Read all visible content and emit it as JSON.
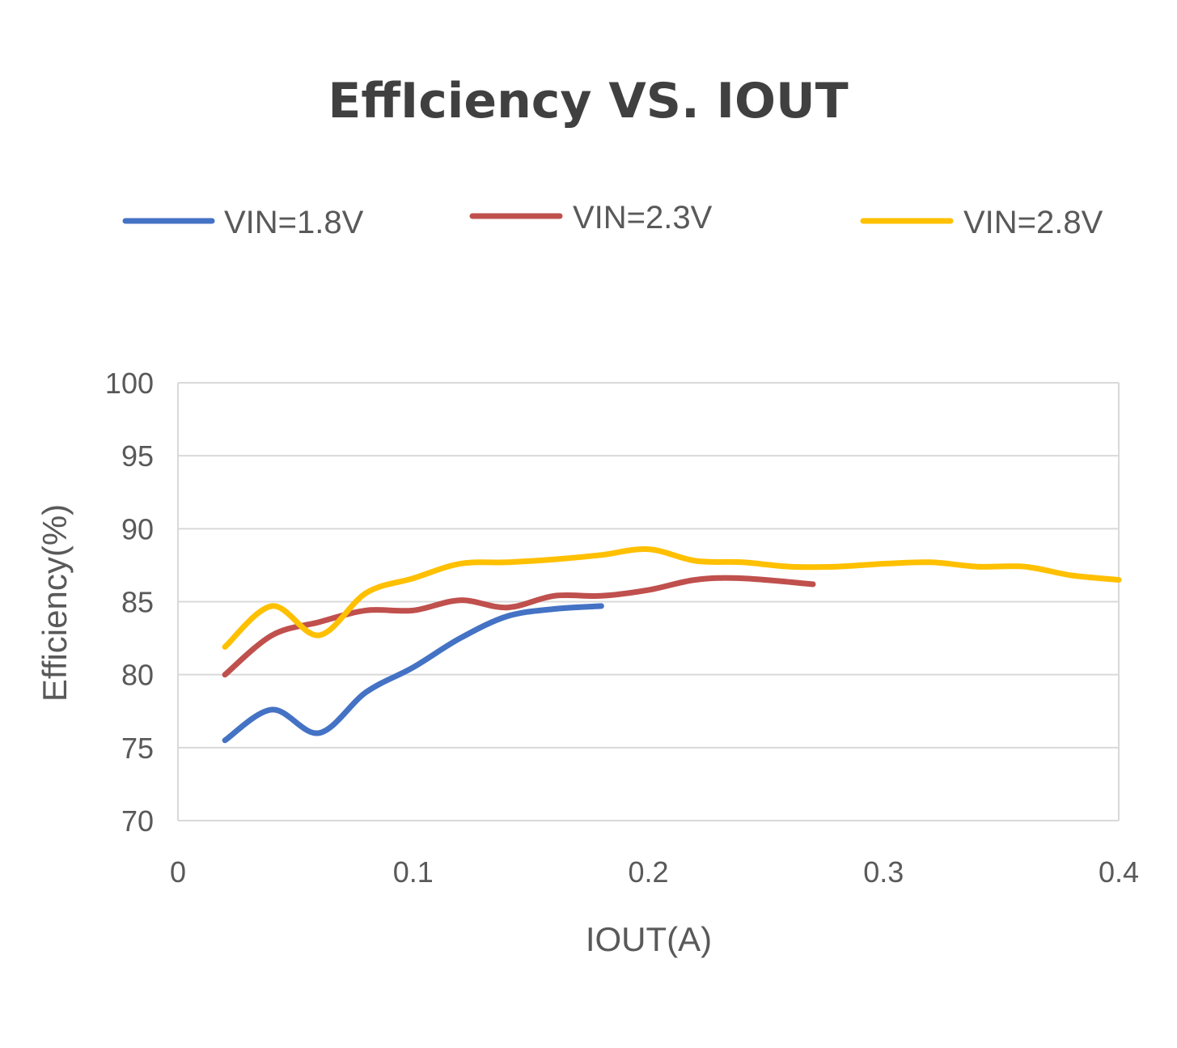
{
  "chart_data": {
    "type": "line",
    "title": "EffIciency VS. IOUT",
    "xlabel": "IOUT(A)",
    "ylabel": "Efficiency(%)",
    "xlim": [
      0,
      0.4
    ],
    "ylim": [
      70,
      100
    ],
    "xticks": [
      0,
      0.1,
      0.2,
      0.3,
      0.4
    ],
    "xtick_labels": [
      "0",
      "0.1",
      "0.2",
      "0.3",
      "0.4"
    ],
    "yticks": [
      70,
      75,
      80,
      85,
      90,
      95,
      100
    ],
    "ytick_labels": [
      "70",
      "75",
      "80",
      "85",
      "90",
      "95",
      "100"
    ],
    "grid": "horizontal",
    "legend_position": "top",
    "series": [
      {
        "name": "VIN=1.8V",
        "color": "#4472C4",
        "x": [
          0.02,
          0.04,
          0.06,
          0.08,
          0.1,
          0.12,
          0.14,
          0.16,
          0.18
        ],
        "y": [
          75.5,
          77.6,
          76.0,
          78.8,
          80.5,
          82.5,
          84.0,
          84.5,
          84.7
        ]
      },
      {
        "name": "VIN=2.3V",
        "color": "#C0504D",
        "x": [
          0.02,
          0.04,
          0.06,
          0.08,
          0.1,
          0.12,
          0.14,
          0.16,
          0.18,
          0.2,
          0.22,
          0.24,
          0.27
        ],
        "y": [
          80.0,
          82.7,
          83.6,
          84.4,
          84.4,
          85.1,
          84.6,
          85.4,
          85.4,
          85.8,
          86.5,
          86.6,
          86.2
        ]
      },
      {
        "name": "VIN=2.8V",
        "color": "#FFC000",
        "x": [
          0.02,
          0.04,
          0.06,
          0.08,
          0.1,
          0.12,
          0.14,
          0.16,
          0.18,
          0.2,
          0.22,
          0.24,
          0.26,
          0.28,
          0.3,
          0.32,
          0.34,
          0.36,
          0.38,
          0.4
        ],
        "y": [
          81.9,
          84.7,
          82.7,
          85.6,
          86.6,
          87.6,
          87.7,
          87.9,
          88.2,
          88.6,
          87.8,
          87.7,
          87.4,
          87.4,
          87.6,
          87.7,
          87.4,
          87.4,
          86.8,
          86.5
        ]
      }
    ]
  }
}
